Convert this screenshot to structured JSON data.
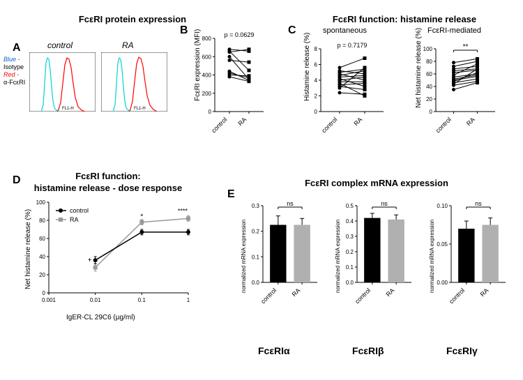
{
  "colors": {
    "black": "#000000",
    "gray": "#999999",
    "cyan": "#00d4d4",
    "red": "#ff0000",
    "blue_text": "#0066cc"
  },
  "panelA": {
    "label": "A",
    "title": "FcεRI protein expression",
    "control_label": "control",
    "ra_label": "RA",
    "legend_blue": "Blue -",
    "legend_isotype": "Isotype",
    "legend_red": "Red -",
    "legend_afceri": "α-FcεRI",
    "xaxis": "FL1-H"
  },
  "panelB": {
    "label": "B",
    "pval": "p = 0.0629",
    "ylabel": "FcεRI expression (MFI)",
    "ylim": [
      0,
      800
    ],
    "yticks": [
      0,
      200,
      400,
      600,
      800
    ],
    "x_labels": [
      "control",
      "RA"
    ],
    "pairs": [
      [
        680,
        660
      ],
      [
        660,
        450
      ],
      [
        650,
        680
      ],
      [
        600,
        350
      ],
      [
        560,
        540
      ],
      [
        440,
        340
      ],
      [
        420,
        370
      ],
      [
        400,
        390
      ],
      [
        380,
        330
      ]
    ],
    "color": "#000000",
    "line_width": 1
  },
  "panelC": {
    "label": "C",
    "title": "FcεRI function: histamine release",
    "left": {
      "subtitle": "spontaneous",
      "pval": "p = 0.7179",
      "ylabel": "Histamine release (%)",
      "ylim": [
        0,
        8
      ],
      "yticks": [
        0,
        2,
        4,
        6,
        8
      ],
      "x_labels": [
        "control",
        "RA"
      ],
      "pairs": [
        [
          5.6,
          6.8
        ],
        [
          5.2,
          4.8
        ],
        [
          5.0,
          5.4
        ],
        [
          4.8,
          4.0
        ],
        [
          4.6,
          5.2
        ],
        [
          4.4,
          4.6
        ],
        [
          4.2,
          3.2
        ],
        [
          4.0,
          4.4
        ],
        [
          3.8,
          3.8
        ],
        [
          3.6,
          2.0
        ],
        [
          3.4,
          3.6
        ],
        [
          3.2,
          2.8
        ],
        [
          3.0,
          5.6
        ],
        [
          2.4,
          2.2
        ]
      ],
      "color": "#000000",
      "line_width": 1
    },
    "right": {
      "subtitle": "FcεRI-mediated",
      "sig": "**",
      "ylabel": "Net histamine release (%)",
      "ylim": [
        0,
        100
      ],
      "yticks": [
        0,
        20,
        40,
        60,
        80,
        100
      ],
      "x_labels": [
        "control",
        "RA"
      ],
      "pairs": [
        [
          78,
          84
        ],
        [
          72,
          80
        ],
        [
          68,
          72
        ],
        [
          65,
          68
        ],
        [
          62,
          66
        ],
        [
          58,
          76
        ],
        [
          55,
          60
        ],
        [
          52,
          58
        ],
        [
          50,
          56
        ],
        [
          48,
          62
        ],
        [
          46,
          52
        ],
        [
          44,
          68
        ],
        [
          42,
          48
        ],
        [
          35,
          46
        ]
      ],
      "color": "#000000",
      "line_width": 1
    }
  },
  "panelD": {
    "label": "D",
    "title1": "FcεRI function:",
    "title2": "histamine release - dose response",
    "ylabel": "Net histamine release (%)",
    "xlabel": "IgER-CL 29C6 (µg/ml)",
    "ylim": [
      0,
      100
    ],
    "yticks": [
      0,
      20,
      40,
      60,
      80,
      100
    ],
    "xlim": [
      0.001,
      1
    ],
    "xticks": [
      0.001,
      0.01,
      0.1,
      1
    ],
    "xtick_labels": [
      "0.001",
      "0.01",
      "0.1",
      "1"
    ],
    "legend": {
      "control": "control",
      "ra": "RA"
    },
    "control": {
      "x": [
        0.01,
        0.1,
        1
      ],
      "y": [
        36,
        67,
        67
      ],
      "err": [
        4,
        3,
        3
      ],
      "color": "#000000"
    },
    "ra": {
      "x": [
        0.01,
        0.1,
        1
      ],
      "y": [
        28,
        78,
        82
      ],
      "err": [
        4,
        3,
        3
      ],
      "color": "#999999"
    },
    "sig_marks": {
      "plus": "+",
      "star1": "*",
      "star4": "****"
    },
    "line_width": 1.5
  },
  "panelE": {
    "label": "E",
    "title": "FcεRI complex mRNA expression",
    "ylabel": "normalized mRNA expression",
    "ns": "ns",
    "x_labels": [
      "control",
      "RA"
    ],
    "subunit_labels": [
      "FcεRIα",
      "FcεRIβ",
      "FcεRIγ"
    ],
    "bar_colors": {
      "control": "#000000",
      "ra": "#b0b0b0"
    },
    "charts": [
      {
        "ylim": [
          0,
          0.3
        ],
        "yticks": [
          0.0,
          0.1,
          0.2,
          0.3
        ],
        "control": 0.225,
        "ra": 0.225,
        "err_c": 0.035,
        "err_r": 0.025
      },
      {
        "ylim": [
          0,
          0.5
        ],
        "yticks": [
          0.0,
          0.1,
          0.2,
          0.3,
          0.4,
          0.5
        ],
        "control": 0.42,
        "ra": 0.41,
        "err_c": 0.03,
        "err_r": 0.03
      },
      {
        "ylim": [
          0,
          0.1
        ],
        "yticks": [
          0.0,
          0.05,
          0.1
        ],
        "control": 0.07,
        "ra": 0.075,
        "err_c": 0.01,
        "err_r": 0.009
      }
    ],
    "bar_width": 0.6
  }
}
